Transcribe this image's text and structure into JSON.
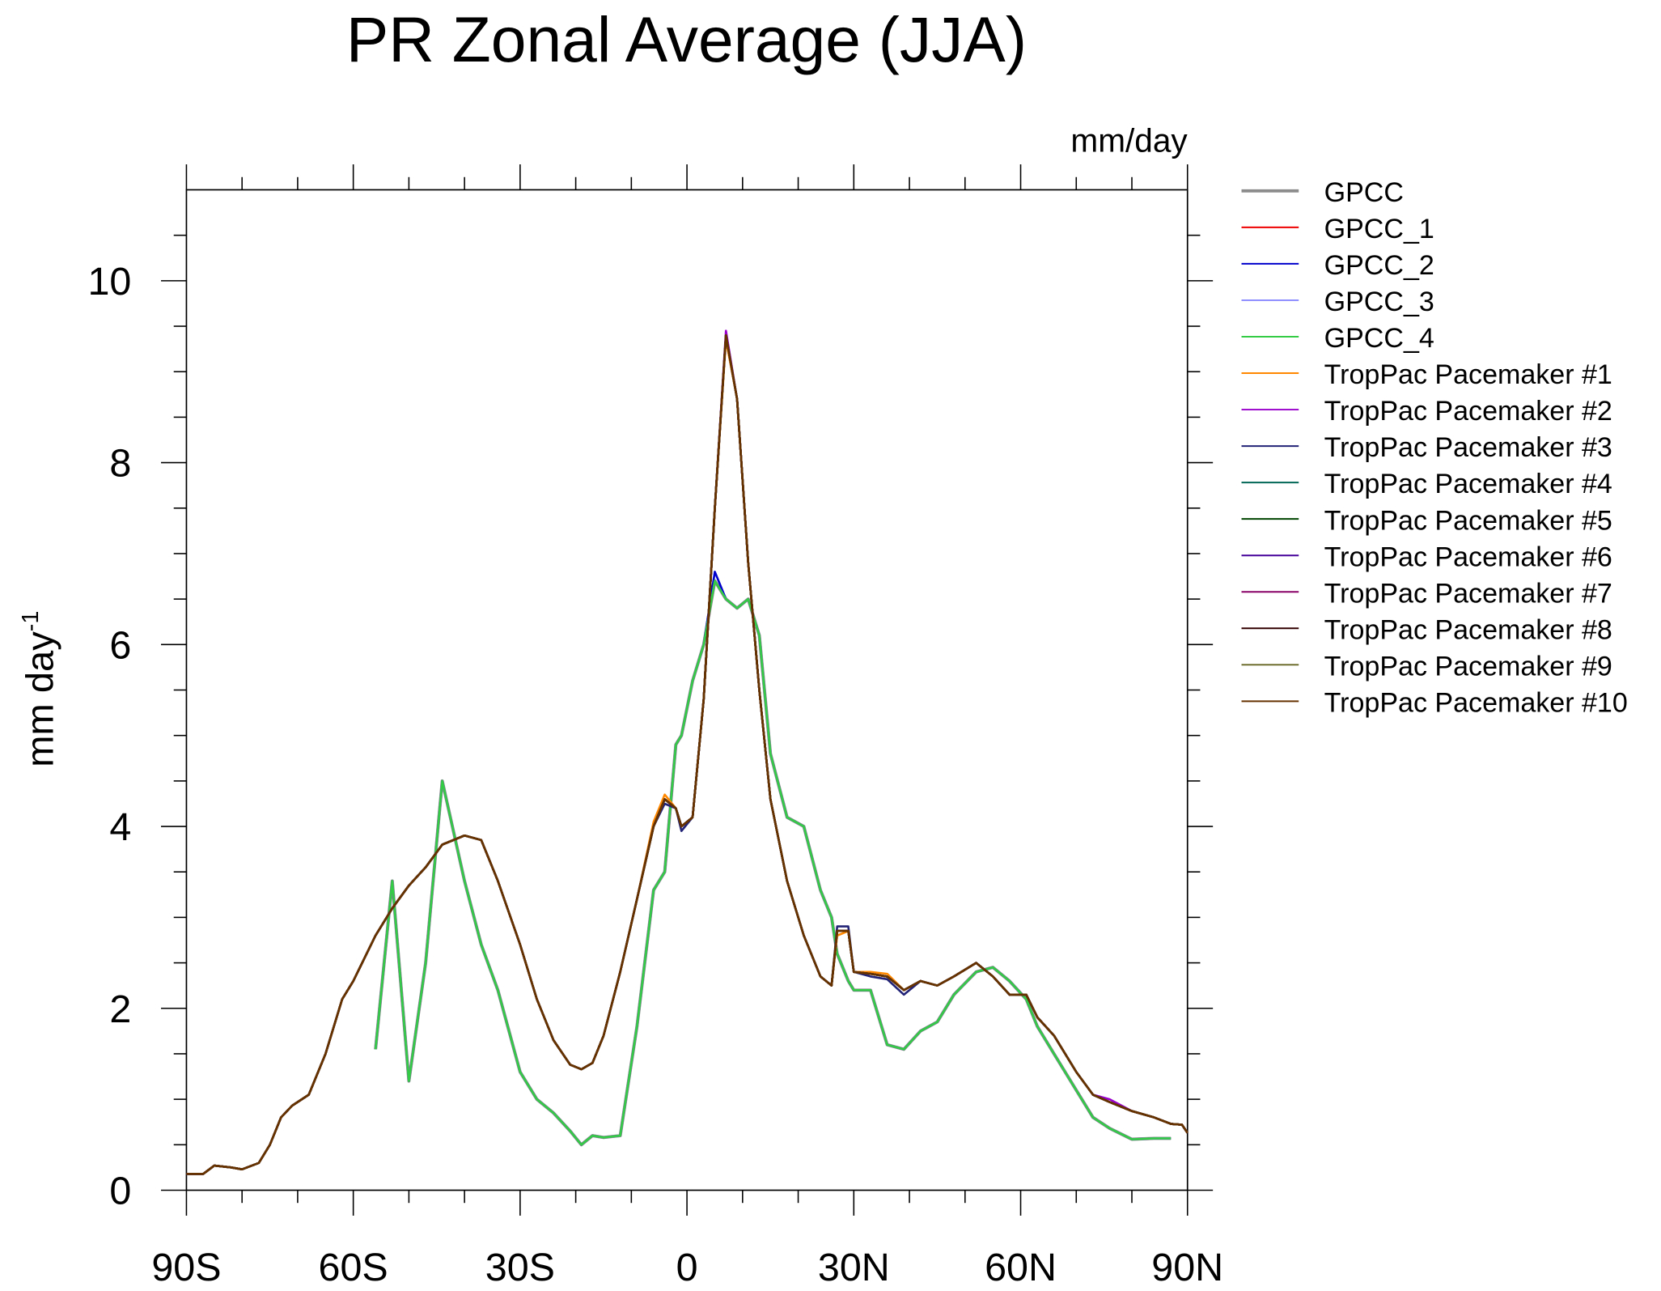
{
  "chart_data": {
    "type": "line",
    "title": "PR Zonal Average (JJA)",
    "units": "mm/day",
    "ylabel": "mm day",
    "ylabel_superscript": "-1",
    "xlim": [
      -90,
      90
    ],
    "ylim": [
      0,
      11
    ],
    "xticks": [
      {
        "value": -90,
        "label": "90S"
      },
      {
        "value": -60,
        "label": "60S"
      },
      {
        "value": -30,
        "label": "30S"
      },
      0,
      {
        "value": 30,
        "label": "30N"
      },
      {
        "value": 60,
        "label": "60N"
      },
      {
        "value": 90,
        "label": "90N"
      }
    ],
    "xminorticks": [
      -80,
      -70,
      -50,
      -40,
      -20,
      -10,
      10,
      20,
      40,
      50,
      70,
      80
    ],
    "yticks": [
      0,
      2,
      4,
      6,
      8,
      10
    ],
    "yminorticks": [
      0.5,
      1,
      1.5,
      2.5,
      3,
      3.5,
      4.5,
      5,
      5.5,
      6.5,
      7,
      7.5,
      8.5,
      9,
      9.5,
      10.5
    ],
    "x": [
      -90,
      -87,
      -85,
      -82,
      -80,
      -77,
      -75,
      -73,
      -71,
      -68,
      -65,
      -62,
      -60,
      -56,
      -53,
      -50,
      -47,
      -44,
      -40,
      -37,
      -34,
      -30,
      -27,
      -24,
      -21,
      -19,
      -17,
      -15,
      -12,
      -9,
      -6,
      -4,
      -2,
      -1,
      1,
      3,
      5,
      7,
      9,
      11,
      13,
      15,
      18,
      21,
      24,
      26,
      27,
      29,
      30,
      33,
      36,
      39,
      42,
      45,
      48,
      52,
      55,
      58,
      61,
      63,
      66,
      70,
      73,
      76,
      80,
      84,
      87,
      89,
      90
    ],
    "series": [
      {
        "name": "GPCC",
        "color": "#8c8c8c",
        "values": [
          null,
          null,
          null,
          null,
          null,
          null,
          null,
          null,
          null,
          null,
          null,
          null,
          null,
          1.55,
          3.4,
          1.2,
          2.5,
          4.5,
          3.4,
          2.7,
          2.2,
          1.3,
          1.0,
          0.85,
          0.65,
          0.5,
          0.6,
          0.58,
          0.6,
          1.8,
          3.3,
          3.5,
          4.9,
          5.0,
          5.6,
          6.0,
          6.7,
          6.5,
          6.4,
          6.5,
          6.1,
          4.8,
          4.1,
          4.0,
          3.3,
          3.0,
          2.6,
          2.3,
          2.2,
          2.2,
          1.6,
          1.55,
          1.75,
          1.85,
          2.15,
          2.4,
          2.45,
          2.3,
          2.1,
          1.8,
          1.5,
          1.1,
          0.8,
          0.68,
          0.56,
          0.57,
          0.57,
          null,
          null
        ]
      },
      {
        "name": "GPCC_1",
        "color": "#ee0000",
        "values": [
          null,
          null,
          null,
          null,
          null,
          null,
          null,
          null,
          null,
          null,
          null,
          null,
          null,
          1.55,
          3.4,
          1.2,
          2.5,
          4.5,
          3.4,
          2.7,
          2.2,
          1.3,
          1.0,
          0.85,
          0.65,
          0.5,
          0.6,
          0.58,
          0.6,
          1.8,
          3.3,
          3.5,
          4.9,
          5.0,
          5.6,
          6.0,
          6.7,
          6.5,
          6.4,
          6.5,
          6.1,
          4.8,
          4.1,
          4.0,
          3.3,
          3.0,
          2.6,
          2.3,
          2.2,
          2.2,
          1.6,
          1.55,
          1.75,
          1.85,
          2.15,
          2.4,
          2.45,
          2.3,
          2.1,
          1.8,
          1.5,
          1.1,
          0.8,
          0.68,
          0.56,
          0.57,
          0.57,
          null,
          null
        ]
      },
      {
        "name": "GPCC_2",
        "color": "#0000cc",
        "values": [
          null,
          null,
          null,
          null,
          null,
          null,
          null,
          null,
          null,
          null,
          null,
          null,
          null,
          1.55,
          3.4,
          1.2,
          2.5,
          4.5,
          3.4,
          2.7,
          2.2,
          1.3,
          1.0,
          0.85,
          0.65,
          0.5,
          0.6,
          0.58,
          0.6,
          1.8,
          3.3,
          3.5,
          4.9,
          5.0,
          5.6,
          6.0,
          6.8,
          6.5,
          6.4,
          6.5,
          6.1,
          4.8,
          4.1,
          4.0,
          3.3,
          3.0,
          2.6,
          2.3,
          2.2,
          2.2,
          1.6,
          1.55,
          1.75,
          1.85,
          2.15,
          2.4,
          2.45,
          2.3,
          2.1,
          1.8,
          1.5,
          1.1,
          0.8,
          0.68,
          0.56,
          0.57,
          0.57,
          null,
          null
        ]
      },
      {
        "name": "GPCC_3",
        "color": "#8888ff",
        "values": [
          null,
          null,
          null,
          null,
          null,
          null,
          null,
          null,
          null,
          null,
          null,
          null,
          null,
          1.55,
          3.4,
          1.2,
          2.5,
          4.5,
          3.4,
          2.7,
          2.2,
          1.3,
          1.0,
          0.85,
          0.65,
          0.5,
          0.6,
          0.58,
          0.6,
          1.8,
          3.3,
          3.5,
          4.9,
          5.0,
          5.6,
          6.0,
          6.7,
          6.5,
          6.4,
          6.5,
          6.1,
          4.8,
          4.1,
          4.0,
          3.3,
          3.0,
          2.6,
          2.3,
          2.2,
          2.2,
          1.6,
          1.55,
          1.75,
          1.85,
          2.15,
          2.4,
          2.45,
          2.3,
          2.1,
          1.8,
          1.5,
          1.1,
          0.8,
          0.68,
          0.56,
          0.57,
          0.57,
          null,
          null
        ]
      },
      {
        "name": "GPCC_4",
        "color": "#33cc44",
        "values": [
          null,
          null,
          null,
          null,
          null,
          null,
          null,
          null,
          null,
          null,
          null,
          null,
          null,
          1.55,
          3.4,
          1.2,
          2.5,
          4.5,
          3.4,
          2.7,
          2.2,
          1.3,
          1.0,
          0.85,
          0.65,
          0.5,
          0.6,
          0.58,
          0.6,
          1.8,
          3.3,
          3.5,
          4.9,
          5.0,
          5.6,
          6.0,
          6.7,
          6.5,
          6.4,
          6.5,
          6.1,
          4.8,
          4.1,
          4.0,
          3.3,
          3.0,
          2.6,
          2.3,
          2.2,
          2.2,
          1.6,
          1.55,
          1.75,
          1.85,
          2.15,
          2.4,
          2.45,
          2.3,
          2.1,
          1.8,
          1.5,
          1.1,
          0.8,
          0.68,
          0.56,
          0.57,
          0.57,
          null,
          null
        ]
      },
      {
        "name": "TropPac Pacemaker #1",
        "color": "#ff8800",
        "values": [
          0.18,
          0.18,
          0.27,
          0.25,
          0.23,
          0.3,
          0.5,
          0.8,
          0.93,
          1.05,
          1.5,
          2.1,
          2.3,
          2.8,
          3.1,
          3.35,
          3.55,
          3.8,
          3.9,
          3.85,
          3.4,
          2.7,
          2.1,
          1.65,
          1.38,
          1.33,
          1.4,
          1.7,
          2.4,
          3.2,
          4.05,
          4.35,
          4.2,
          4.0,
          4.1,
          5.4,
          7.5,
          9.35,
          8.7,
          6.9,
          5.5,
          4.3,
          3.4,
          2.8,
          2.35,
          2.25,
          2.8,
          2.85,
          2.4,
          2.4,
          2.38,
          2.2,
          2.3,
          2.25,
          2.35,
          2.5,
          2.35,
          2.15,
          2.15,
          1.9,
          1.7,
          1.3,
          1.05,
          0.97,
          0.87,
          0.8,
          0.73,
          0.72,
          0.63
        ]
      },
      {
        "name": "TropPac Pacemaker #2",
        "color": "#9900cc",
        "values": [
          0.18,
          0.18,
          0.27,
          0.25,
          0.23,
          0.3,
          0.5,
          0.8,
          0.93,
          1.05,
          1.5,
          2.1,
          2.3,
          2.8,
          3.1,
          3.35,
          3.55,
          3.8,
          3.9,
          3.85,
          3.4,
          2.7,
          2.1,
          1.65,
          1.38,
          1.33,
          1.4,
          1.7,
          2.4,
          3.2,
          4.0,
          4.3,
          4.2,
          4.0,
          4.1,
          5.4,
          7.5,
          9.45,
          8.7,
          6.9,
          5.5,
          4.3,
          3.4,
          2.8,
          2.35,
          2.25,
          2.85,
          2.85,
          2.4,
          2.38,
          2.35,
          2.2,
          2.3,
          2.25,
          2.35,
          2.5,
          2.35,
          2.15,
          2.15,
          1.9,
          1.7,
          1.3,
          1.05,
          1.0,
          0.87,
          0.8,
          0.73,
          0.72,
          0.63
        ]
      },
      {
        "name": "TropPac Pacemaker #3",
        "color": "#222277",
        "values": [
          0.18,
          0.18,
          0.27,
          0.25,
          0.23,
          0.3,
          0.5,
          0.8,
          0.93,
          1.05,
          1.5,
          2.1,
          2.3,
          2.8,
          3.1,
          3.35,
          3.55,
          3.8,
          3.9,
          3.85,
          3.4,
          2.7,
          2.1,
          1.65,
          1.38,
          1.33,
          1.4,
          1.7,
          2.4,
          3.2,
          4.0,
          4.25,
          4.2,
          3.95,
          4.1,
          5.4,
          7.5,
          9.4,
          8.7,
          6.9,
          5.5,
          4.3,
          3.4,
          2.8,
          2.35,
          2.25,
          2.9,
          2.9,
          2.4,
          2.35,
          2.32,
          2.15,
          2.3,
          2.25,
          2.35,
          2.5,
          2.35,
          2.15,
          2.15,
          1.9,
          1.7,
          1.3,
          1.05,
          0.97,
          0.87,
          0.8,
          0.73,
          0.72,
          0.63
        ]
      },
      {
        "name": "TropPac Pacemaker #4",
        "color": "#006655",
        "values": [
          0.18,
          0.18,
          0.27,
          0.25,
          0.23,
          0.3,
          0.5,
          0.8,
          0.93,
          1.05,
          1.5,
          2.1,
          2.3,
          2.8,
          3.1,
          3.35,
          3.55,
          3.8,
          3.9,
          3.85,
          3.4,
          2.7,
          2.1,
          1.65,
          1.38,
          1.33,
          1.4,
          1.7,
          2.4,
          3.2,
          4.0,
          4.3,
          4.2,
          4.0,
          4.1,
          5.4,
          7.5,
          9.4,
          8.7,
          6.9,
          5.5,
          4.3,
          3.4,
          2.8,
          2.35,
          2.25,
          2.85,
          2.85,
          2.4,
          2.38,
          2.35,
          2.2,
          2.3,
          2.25,
          2.35,
          2.5,
          2.35,
          2.15,
          2.15,
          1.9,
          1.7,
          1.3,
          1.05,
          0.97,
          0.87,
          0.8,
          0.73,
          0.72,
          0.63
        ]
      },
      {
        "name": "TropPac Pacemaker #5",
        "color": "#004400",
        "values": [
          0.18,
          0.18,
          0.27,
          0.25,
          0.23,
          0.3,
          0.5,
          0.8,
          0.93,
          1.05,
          1.5,
          2.1,
          2.3,
          2.8,
          3.1,
          3.35,
          3.55,
          3.8,
          3.9,
          3.85,
          3.4,
          2.7,
          2.1,
          1.65,
          1.38,
          1.33,
          1.4,
          1.7,
          2.4,
          3.2,
          4.0,
          4.3,
          4.2,
          4.0,
          4.1,
          5.4,
          7.5,
          9.4,
          8.7,
          6.9,
          5.5,
          4.3,
          3.4,
          2.8,
          2.35,
          2.25,
          2.85,
          2.85,
          2.4,
          2.38,
          2.35,
          2.2,
          2.3,
          2.25,
          2.35,
          2.5,
          2.35,
          2.15,
          2.15,
          1.9,
          1.7,
          1.3,
          1.05,
          0.97,
          0.87,
          0.8,
          0.73,
          0.72,
          0.63
        ]
      },
      {
        "name": "TropPac Pacemaker #6",
        "color": "#440099",
        "values": [
          0.18,
          0.18,
          0.27,
          0.25,
          0.23,
          0.3,
          0.5,
          0.8,
          0.93,
          1.05,
          1.5,
          2.1,
          2.3,
          2.8,
          3.1,
          3.35,
          3.55,
          3.8,
          3.9,
          3.85,
          3.4,
          2.7,
          2.1,
          1.65,
          1.38,
          1.33,
          1.4,
          1.7,
          2.4,
          3.2,
          4.0,
          4.3,
          4.2,
          4.0,
          4.1,
          5.4,
          7.5,
          9.4,
          8.7,
          6.9,
          5.5,
          4.3,
          3.4,
          2.8,
          2.35,
          2.25,
          2.85,
          2.85,
          2.4,
          2.38,
          2.35,
          2.2,
          2.3,
          2.25,
          2.35,
          2.5,
          2.35,
          2.15,
          2.15,
          1.9,
          1.7,
          1.3,
          1.05,
          0.97,
          0.87,
          0.8,
          0.73,
          0.72,
          0.63
        ]
      },
      {
        "name": "TropPac Pacemaker #7",
        "color": "#880066",
        "values": [
          0.18,
          0.18,
          0.27,
          0.25,
          0.23,
          0.3,
          0.5,
          0.8,
          0.93,
          1.05,
          1.5,
          2.1,
          2.3,
          2.8,
          3.1,
          3.35,
          3.55,
          3.8,
          3.9,
          3.85,
          3.4,
          2.7,
          2.1,
          1.65,
          1.38,
          1.33,
          1.4,
          1.7,
          2.4,
          3.2,
          4.0,
          4.3,
          4.2,
          4.0,
          4.1,
          5.4,
          7.5,
          9.4,
          8.7,
          6.9,
          5.5,
          4.3,
          3.4,
          2.8,
          2.35,
          2.25,
          2.85,
          2.85,
          2.4,
          2.38,
          2.35,
          2.2,
          2.3,
          2.25,
          2.35,
          2.5,
          2.35,
          2.15,
          2.15,
          1.9,
          1.7,
          1.3,
          1.05,
          0.97,
          0.87,
          0.8,
          0.73,
          0.72,
          0.63
        ]
      },
      {
        "name": "TropPac Pacemaker #8",
        "color": "#330000",
        "values": [
          0.18,
          0.18,
          0.27,
          0.25,
          0.23,
          0.3,
          0.5,
          0.8,
          0.93,
          1.05,
          1.5,
          2.1,
          2.3,
          2.8,
          3.1,
          3.35,
          3.55,
          3.8,
          3.9,
          3.85,
          3.4,
          2.7,
          2.1,
          1.65,
          1.38,
          1.33,
          1.4,
          1.7,
          2.4,
          3.2,
          4.0,
          4.3,
          4.2,
          4.0,
          4.1,
          5.4,
          7.5,
          9.4,
          8.7,
          6.9,
          5.5,
          4.3,
          3.4,
          2.8,
          2.35,
          2.25,
          2.85,
          2.85,
          2.4,
          2.38,
          2.35,
          2.2,
          2.3,
          2.25,
          2.35,
          2.5,
          2.35,
          2.15,
          2.15,
          1.9,
          1.7,
          1.3,
          1.05,
          0.97,
          0.87,
          0.8,
          0.73,
          0.72,
          0.63
        ]
      },
      {
        "name": "TropPac Pacemaker #9",
        "color": "#666622",
        "values": [
          0.18,
          0.18,
          0.27,
          0.25,
          0.23,
          0.3,
          0.5,
          0.8,
          0.93,
          1.05,
          1.5,
          2.1,
          2.3,
          2.8,
          3.1,
          3.35,
          3.55,
          3.8,
          3.9,
          3.85,
          3.4,
          2.7,
          2.1,
          1.65,
          1.38,
          1.33,
          1.4,
          1.7,
          2.4,
          3.2,
          4.0,
          4.3,
          4.2,
          4.0,
          4.1,
          5.4,
          7.5,
          9.4,
          8.7,
          6.9,
          5.5,
          4.3,
          3.4,
          2.8,
          2.35,
          2.25,
          2.85,
          2.85,
          2.4,
          2.38,
          2.35,
          2.2,
          2.3,
          2.25,
          2.35,
          2.5,
          2.35,
          2.15,
          2.15,
          1.9,
          1.7,
          1.3,
          1.05,
          0.97,
          0.87,
          0.8,
          0.73,
          0.72,
          0.63
        ]
      },
      {
        "name": "TropPac Pacemaker #10",
        "color": "#663300",
        "values": [
          0.18,
          0.18,
          0.27,
          0.25,
          0.23,
          0.3,
          0.5,
          0.8,
          0.93,
          1.05,
          1.5,
          2.1,
          2.3,
          2.8,
          3.1,
          3.35,
          3.55,
          3.8,
          3.9,
          3.85,
          3.4,
          2.7,
          2.1,
          1.65,
          1.38,
          1.33,
          1.4,
          1.7,
          2.4,
          3.2,
          4.0,
          4.3,
          4.2,
          4.0,
          4.1,
          5.4,
          7.5,
          9.4,
          8.7,
          6.9,
          5.5,
          4.3,
          3.4,
          2.8,
          2.35,
          2.25,
          2.85,
          2.85,
          2.4,
          2.38,
          2.35,
          2.2,
          2.3,
          2.25,
          2.35,
          2.5,
          2.35,
          2.15,
          2.15,
          1.9,
          1.7,
          1.3,
          1.05,
          0.97,
          0.87,
          0.8,
          0.73,
          0.72,
          0.63
        ]
      }
    ]
  }
}
